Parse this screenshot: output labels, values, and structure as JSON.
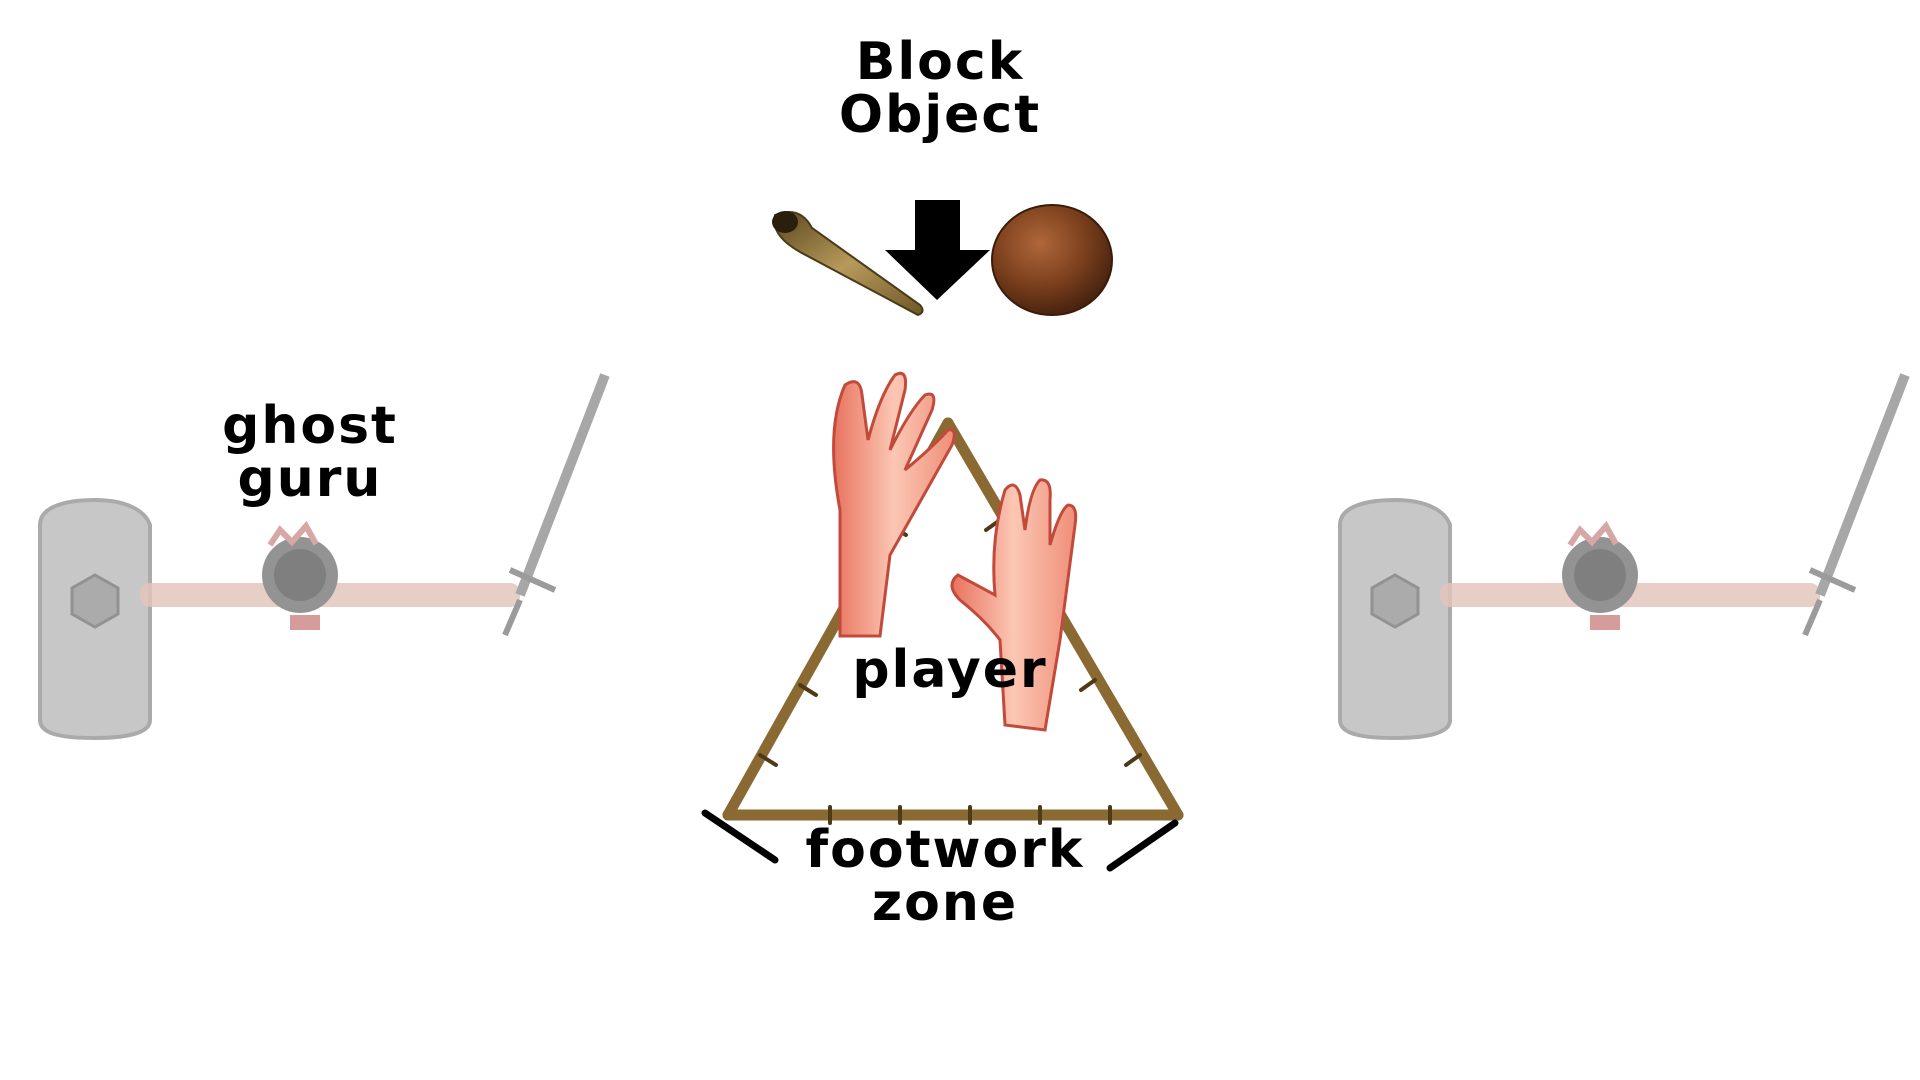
{
  "labels": {
    "block_object": [
      "Block",
      "Object"
    ],
    "ghost_guru": [
      "ghost",
      "guru"
    ],
    "player": "player",
    "footwork_zone": [
      "footwork",
      "zone"
    ]
  },
  "icons": {
    "block_objects": [
      "club-icon",
      "coconut-icon"
    ],
    "direction": "arrow-down-icon",
    "player": [
      "left-hand-icon",
      "right-hand-icon"
    ],
    "zone": "bamboo-triangle-icon",
    "ghosts": [
      "ghost-warrior-figure",
      "ghost-warrior-figure"
    ]
  },
  "colors": {
    "text": "#000000",
    "bamboo": "#8a6a32",
    "hand": "#f4a78e",
    "coconut": "#7a3f1c",
    "ghost": "#9a9a9a"
  }
}
